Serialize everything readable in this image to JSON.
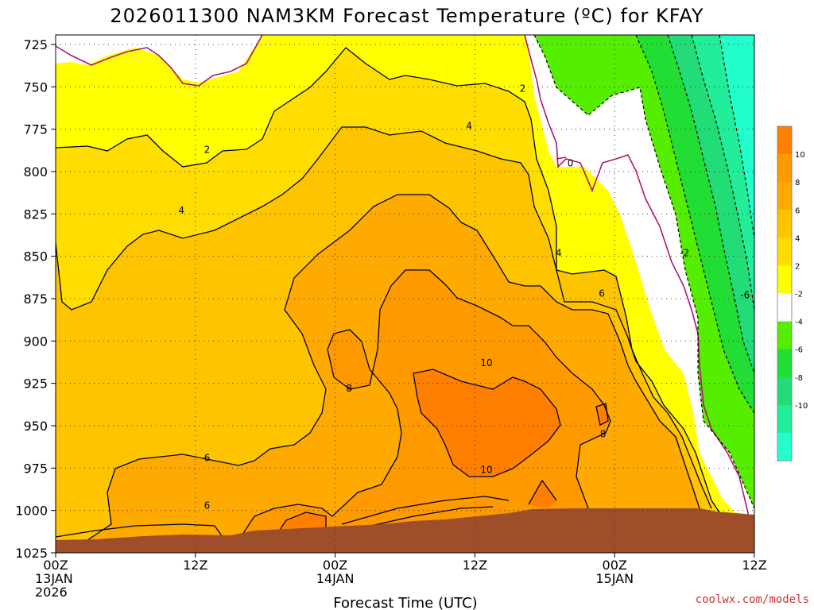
{
  "chart_data": {
    "type": "heatmap",
    "title": "2026011300 NAM3KM Forecast Temperature (ºC) for KFAY",
    "xlabel": "Forecast Time (UTC)",
    "ylabel": "",
    "x_ticks": [
      {
        "hour": 0,
        "lines": [
          "00Z",
          "13JAN",
          "2026"
        ]
      },
      {
        "hour": 12,
        "lines": [
          "12Z"
        ]
      },
      {
        "hour": 24,
        "lines": [
          "00Z",
          "14JAN"
        ]
      },
      {
        "hour": 36,
        "lines": [
          "12Z"
        ]
      },
      {
        "hour": 48,
        "lines": [
          "00Z",
          "15JAN"
        ]
      },
      {
        "hour": 60,
        "lines": [
          "12Z"
        ]
      }
    ],
    "xlim": [
      0,
      60
    ],
    "y_ticks": [
      725,
      750,
      775,
      800,
      825,
      850,
      875,
      900,
      925,
      950,
      975,
      1000,
      1025
    ],
    "ylim": [
      725,
      1025
    ],
    "ylabel_units": "hPa",
    "grid": true,
    "colorbar": {
      "placement": "right",
      "tick_labels": [
        "10",
        "8",
        "6",
        "4",
        "2",
        "-2",
        "-4",
        "-6",
        "-8",
        "-10"
      ],
      "bins": [
        {
          "range": "above 10",
          "color": "#ff7f00"
        },
        {
          "range": "8 to 10",
          "color": "#ff9900"
        },
        {
          "range": "6 to 8",
          "color": "#ffaa00"
        },
        {
          "range": "4 to 6",
          "color": "#ffc400"
        },
        {
          "range": "2 to 4",
          "color": "#ffdd00"
        },
        {
          "range": "0 to 2",
          "color": "#ffff00"
        },
        {
          "range": "-2 to 0",
          "color": "#ffffff"
        },
        {
          "range": "-4 to -2",
          "color": "#55ee00"
        },
        {
          "range": "-6 to -4",
          "color": "#22dd33"
        },
        {
          "range": "-8 to -6",
          "color": "#22dd77"
        },
        {
          "range": "-10 to -8",
          "color": "#22ee99"
        },
        {
          "range": "below -10",
          "color": "#22ffcc"
        }
      ]
    },
    "colors": {
      "ground": "#9e4f2a",
      "zero_line": "#b0156e",
      "contour": "#000000"
    },
    "contour_labels": [
      {
        "text": "2",
        "hour": 13.0,
        "p": 787
      },
      {
        "text": "2",
        "hour": 40.1,
        "p": 751
      },
      {
        "text": "4",
        "hour": 10.8,
        "p": 823
      },
      {
        "text": "4",
        "hour": 35.5,
        "p": 773
      },
      {
        "text": "4",
        "hour": 43.2,
        "p": 848
      },
      {
        "text": "6",
        "hour": 13.0,
        "p": 969
      },
      {
        "text": "6",
        "hour": 13.0,
        "p": 997
      },
      {
        "text": "6",
        "hour": 46.9,
        "p": 872
      },
      {
        "text": "8",
        "hour": 25.2,
        "p": 928
      },
      {
        "text": "8",
        "hour": 47.0,
        "p": 955
      },
      {
        "text": "10",
        "hour": 37.0,
        "p": 913
      },
      {
        "text": "10",
        "hour": 37.0,
        "p": 976
      },
      {
        "text": "0",
        "hour": 44.2,
        "p": 795
      },
      {
        "text": "-2",
        "hour": 54.0,
        "p": 848
      },
      {
        "text": "-6",
        "hour": 59.2,
        "p": 873
      }
    ]
  },
  "credit": "coolwx.com/models"
}
